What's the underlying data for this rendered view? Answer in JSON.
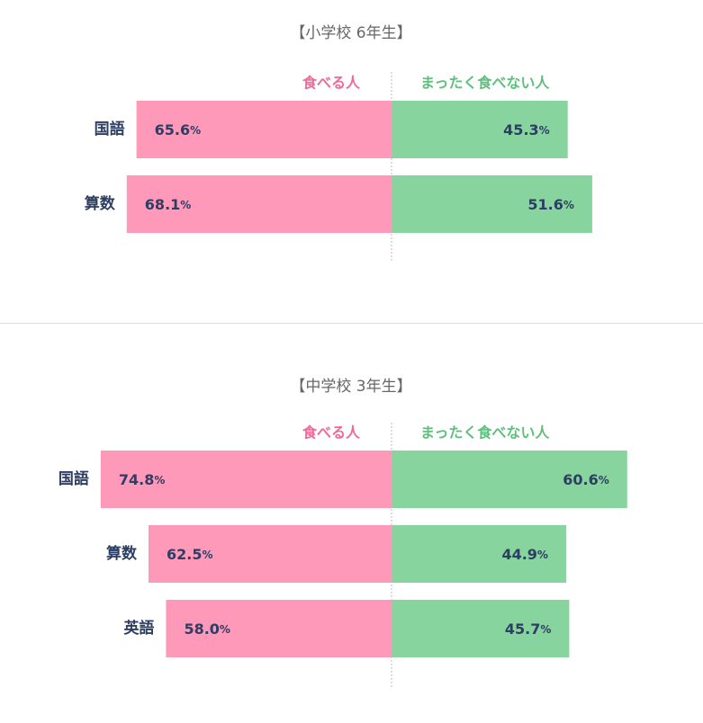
{
  "colors": {
    "eat": "#ff99ba",
    "not_eat": "#87d49e",
    "eat_label": "#f06a96",
    "not_eat_label": "#5fbf7c",
    "text": "#2c3e63",
    "title": "#666666",
    "divider": "#dddddd",
    "center_line": "#bbbbbb"
  },
  "chart_data": [
    {
      "type": "bar",
      "title": "【小学校 6年生】",
      "legend": [
        "食べる人",
        "まったく食べない人"
      ],
      "categories": [
        "国語",
        "算数"
      ],
      "series": [
        {
          "name": "食べる人",
          "values": [
            65.6,
            68.1
          ]
        },
        {
          "name": "まったく食べない人",
          "values": [
            45.3,
            51.6
          ]
        }
      ],
      "value_suffix": "%",
      "orientation": "horizontal-diverging"
    },
    {
      "type": "bar",
      "title": "【中学校 3年生】",
      "legend": [
        "食べる人",
        "まったく食べない人"
      ],
      "categories": [
        "国語",
        "算数",
        "英語"
      ],
      "series": [
        {
          "name": "食べる人",
          "values": [
            74.8,
            62.5,
            58.0
          ]
        },
        {
          "name": "まったく食べない人",
          "values": [
            60.6,
            44.9,
            45.7
          ]
        }
      ],
      "value_suffix": "%",
      "orientation": "horizontal-diverging"
    }
  ]
}
